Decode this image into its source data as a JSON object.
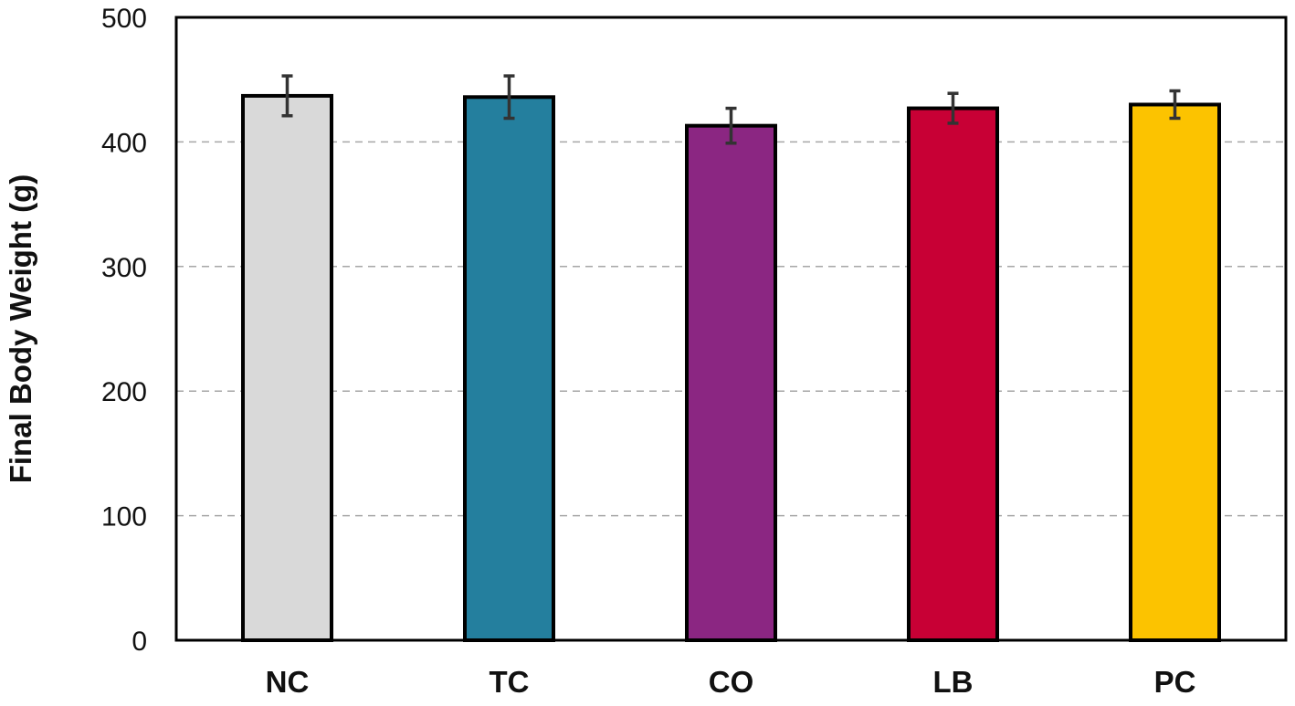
{
  "chart_data": {
    "type": "bar",
    "title": "",
    "xlabel": "",
    "ylabel": "Final Body Weight (g)",
    "categories": [
      "NC",
      "TC",
      "CO",
      "LB",
      "PC"
    ],
    "values": [
      437,
      436,
      413,
      427,
      430
    ],
    "error": [
      16,
      17,
      14,
      12,
      11
    ],
    "colors": [
      "#d9d9d9",
      "#247f9e",
      "#8b2682",
      "#c80035",
      "#fcc300"
    ],
    "ylim": [
      0,
      500
    ],
    "yticks": [
      0,
      100,
      200,
      300,
      400,
      500
    ],
    "ytick_labels": [
      "0",
      "100",
      "200",
      "300",
      "400",
      "500"
    ],
    "grid": "horizontal dashed",
    "legend": "none"
  }
}
